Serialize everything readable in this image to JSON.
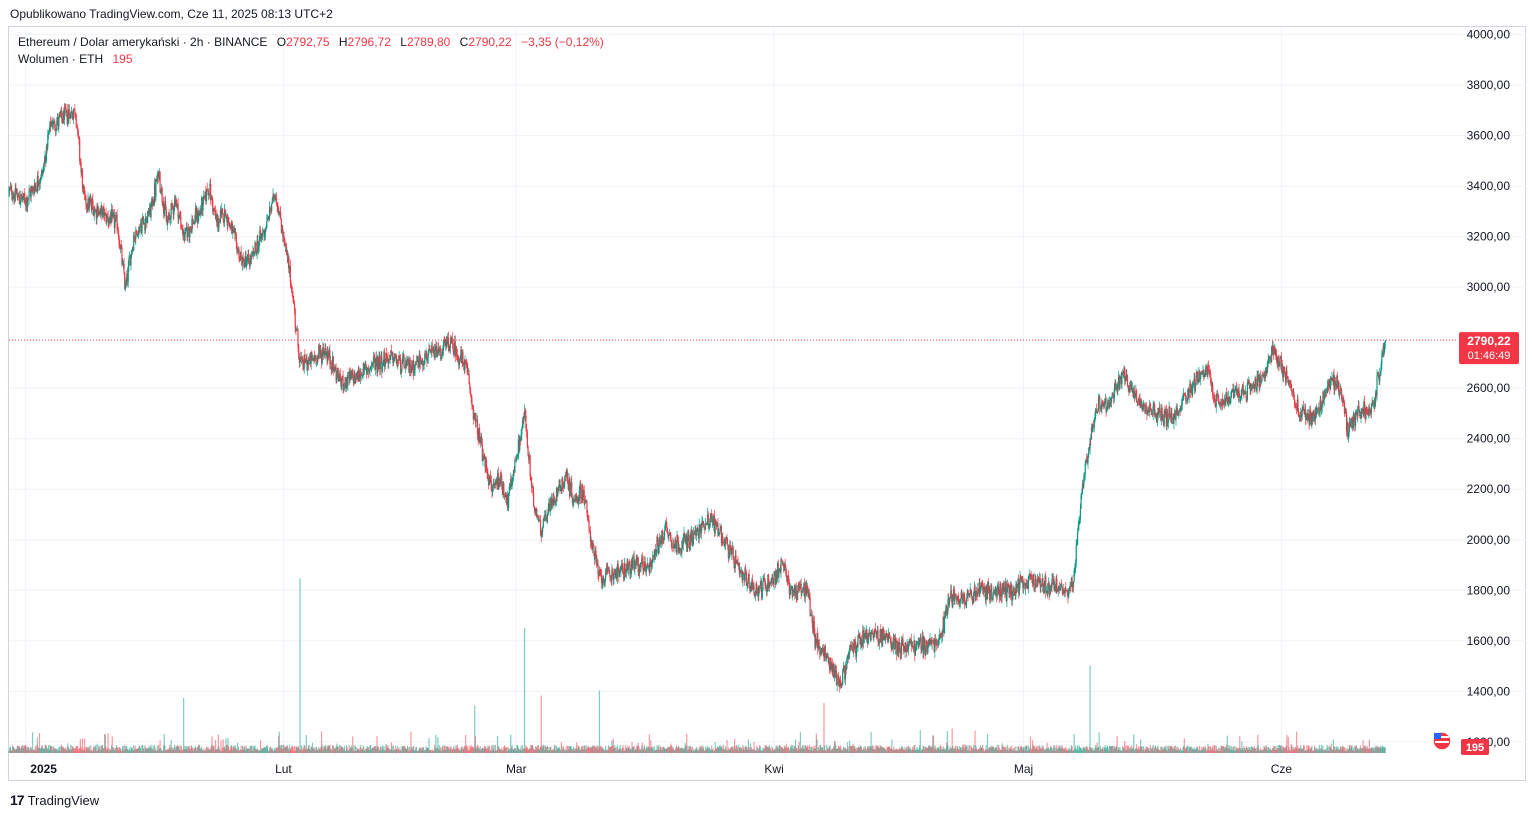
{
  "header": {
    "published": "Opublikowano TradingView.com, Cze 11, 2025 08:13 UTC+2"
  },
  "legend": {
    "symbol": "Ethereum / Dolar amerykański · 2h · BINANCE",
    "o_label": "O",
    "o_value": "2792,75",
    "h_label": "H",
    "h_value": "2796,72",
    "l_label": "L",
    "l_value": "2789,80",
    "c_label": "C",
    "c_value": "2790,22",
    "change": "−3,35 (−0,12%)",
    "volume_label": "Wolumen · ETH",
    "volume_value": "195"
  },
  "price_tag": {
    "price": "2790,22",
    "countdown": "01:46:49"
  },
  "volume_tag": {
    "value": "195"
  },
  "footer": {
    "brand": "TradingView",
    "logo": "17"
  },
  "colors": {
    "up": "#089981",
    "down": "#f23645",
    "grid": "#f0f3fa",
    "axis_text": "#131722"
  },
  "chart_data": {
    "type": "candlestick",
    "title": "Ethereum / Dolar amerykański · 2h · BINANCE",
    "y_ticks": [
      "4000,00",
      "3800,00",
      "3600,00",
      "3400,00",
      "3200,00",
      "3000,00",
      "2600,00",
      "2400,00",
      "2200,00",
      "2000,00",
      "1800,00",
      "1600,00",
      "1400,00",
      "1200,00"
    ],
    "y_tick_values": [
      4000,
      3800,
      3600,
      3400,
      3200,
      3000,
      2600,
      2400,
      2200,
      2000,
      1800,
      1600,
      1400,
      1200
    ],
    "ylim": [
      1140,
      4030
    ],
    "x_ticks": [
      {
        "label": "2025",
        "date": "2025-01-01"
      },
      {
        "label": "Lut",
        "date": "2025-02-01"
      },
      {
        "label": "Mar",
        "date": "2025-03-01"
      },
      {
        "label": "Kwi",
        "date": "2025-04-01"
      },
      {
        "label": "Maj",
        "date": "2025-05-01"
      },
      {
        "label": "Cze",
        "date": "2025-06-01"
      }
    ],
    "xlim": [
      "2024-12-30",
      "2025-06-22"
    ],
    "last_price": 2790.22,
    "grid": true,
    "price_anchors": [
      {
        "date": "2024-12-30",
        "price": 3380
      },
      {
        "date": "2025-01-01",
        "price": 3340
      },
      {
        "date": "2025-01-03",
        "price": 3450
      },
      {
        "date": "2025-01-04",
        "price": 3640
      },
      {
        "date": "2025-01-07",
        "price": 3700
      },
      {
        "date": "2025-01-08",
        "price": 3350
      },
      {
        "date": "2025-01-09",
        "price": 3320
      },
      {
        "date": "2025-01-12",
        "price": 3250
      },
      {
        "date": "2025-01-13",
        "price": 3000
      },
      {
        "date": "2025-01-14",
        "price": 3200
      },
      {
        "date": "2025-01-16",
        "price": 3300
      },
      {
        "date": "2025-01-17",
        "price": 3450
      },
      {
        "date": "2025-01-18",
        "price": 3250
      },
      {
        "date": "2025-01-19",
        "price": 3350
      },
      {
        "date": "2025-01-20",
        "price": 3200
      },
      {
        "date": "2025-01-22",
        "price": 3300
      },
      {
        "date": "2025-01-23",
        "price": 3400
      },
      {
        "date": "2025-01-24",
        "price": 3250
      },
      {
        "date": "2025-01-25",
        "price": 3300
      },
      {
        "date": "2025-01-27",
        "price": 3100
      },
      {
        "date": "2025-01-28",
        "price": 3100
      },
      {
        "date": "2025-01-30",
        "price": 3250
      },
      {
        "date": "2025-01-31",
        "price": 3380
      },
      {
        "date": "2025-02-01",
        "price": 3200
      },
      {
        "date": "2025-02-02",
        "price": 3000
      },
      {
        "date": "2025-02-03",
        "price": 2700
      },
      {
        "date": "2025-02-04",
        "price": 2700
      },
      {
        "date": "2025-02-06",
        "price": 2750
      },
      {
        "date": "2025-02-08",
        "price": 2620
      },
      {
        "date": "2025-02-10",
        "price": 2650
      },
      {
        "date": "2025-02-12",
        "price": 2700
      },
      {
        "date": "2025-02-14",
        "price": 2720
      },
      {
        "date": "2025-02-16",
        "price": 2680
      },
      {
        "date": "2025-02-18",
        "price": 2720
      },
      {
        "date": "2025-02-20",
        "price": 2750
      },
      {
        "date": "2025-02-21",
        "price": 2780
      },
      {
        "date": "2025-02-23",
        "price": 2680
      },
      {
        "date": "2025-02-24",
        "price": 2480
      },
      {
        "date": "2025-02-25",
        "price": 2330
      },
      {
        "date": "2025-02-26",
        "price": 2200
      },
      {
        "date": "2025-02-27",
        "price": 2250
      },
      {
        "date": "2025-02-28",
        "price": 2150
      },
      {
        "date": "2025-03-02",
        "price": 2500
      },
      {
        "date": "2025-03-03",
        "price": 2150
      },
      {
        "date": "2025-03-04",
        "price": 2050
      },
      {
        "date": "2025-03-06",
        "price": 2200
      },
      {
        "date": "2025-03-07",
        "price": 2250
      },
      {
        "date": "2025-03-08",
        "price": 2150
      },
      {
        "date": "2025-03-09",
        "price": 2200
      },
      {
        "date": "2025-03-10",
        "price": 2000
      },
      {
        "date": "2025-03-11",
        "price": 1850
      },
      {
        "date": "2025-03-13",
        "price": 1870
      },
      {
        "date": "2025-03-15",
        "price": 1900
      },
      {
        "date": "2025-03-17",
        "price": 1900
      },
      {
        "date": "2025-03-19",
        "price": 2050
      },
      {
        "date": "2025-03-20",
        "price": 1980
      },
      {
        "date": "2025-03-22",
        "price": 2000
      },
      {
        "date": "2025-03-24",
        "price": 2080
      },
      {
        "date": "2025-03-25",
        "price": 2060
      },
      {
        "date": "2025-03-26",
        "price": 2000
      },
      {
        "date": "2025-03-28",
        "price": 1860
      },
      {
        "date": "2025-03-30",
        "price": 1800
      },
      {
        "date": "2025-04-01",
        "price": 1850
      },
      {
        "date": "2025-04-02",
        "price": 1900
      },
      {
        "date": "2025-04-03",
        "price": 1800
      },
      {
        "date": "2025-04-05",
        "price": 1800
      },
      {
        "date": "2025-04-06",
        "price": 1600
      },
      {
        "date": "2025-04-07",
        "price": 1550
      },
      {
        "date": "2025-04-09",
        "price": 1430
      },
      {
        "date": "2025-04-10",
        "price": 1550
      },
      {
        "date": "2025-04-12",
        "price": 1620
      },
      {
        "date": "2025-04-14",
        "price": 1620
      },
      {
        "date": "2025-04-16",
        "price": 1580
      },
      {
        "date": "2025-04-18",
        "price": 1580
      },
      {
        "date": "2025-04-20",
        "price": 1590
      },
      {
        "date": "2025-04-21",
        "price": 1600
      },
      {
        "date": "2025-04-22",
        "price": 1770
      },
      {
        "date": "2025-04-24",
        "price": 1780
      },
      {
        "date": "2025-04-26",
        "price": 1800
      },
      {
        "date": "2025-04-28",
        "price": 1790
      },
      {
        "date": "2025-04-30",
        "price": 1800
      },
      {
        "date": "2025-05-02",
        "price": 1840
      },
      {
        "date": "2025-05-04",
        "price": 1820
      },
      {
        "date": "2025-05-06",
        "price": 1800
      },
      {
        "date": "2025-05-07",
        "price": 1820
      },
      {
        "date": "2025-05-08",
        "price": 2200
      },
      {
        "date": "2025-05-09",
        "price": 2400
      },
      {
        "date": "2025-05-10",
        "price": 2550
      },
      {
        "date": "2025-05-11",
        "price": 2520
      },
      {
        "date": "2025-05-13",
        "price": 2650
      },
      {
        "date": "2025-05-14",
        "price": 2600
      },
      {
        "date": "2025-05-15",
        "price": 2550
      },
      {
        "date": "2025-05-17",
        "price": 2500
      },
      {
        "date": "2025-05-19",
        "price": 2480
      },
      {
        "date": "2025-05-20",
        "price": 2550
      },
      {
        "date": "2025-05-21",
        "price": 2600
      },
      {
        "date": "2025-05-23",
        "price": 2680
      },
      {
        "date": "2025-05-24",
        "price": 2550
      },
      {
        "date": "2025-05-26",
        "price": 2560
      },
      {
        "date": "2025-05-28",
        "price": 2600
      },
      {
        "date": "2025-05-30",
        "price": 2650
      },
      {
        "date": "2025-05-31",
        "price": 2750
      },
      {
        "date": "2025-06-02",
        "price": 2620
      },
      {
        "date": "2025-06-03",
        "price": 2500
      },
      {
        "date": "2025-06-05",
        "price": 2480
      },
      {
        "date": "2025-06-06",
        "price": 2550
      },
      {
        "date": "2025-06-07",
        "price": 2640
      },
      {
        "date": "2025-06-08",
        "price": 2600
      },
      {
        "date": "2025-06-09",
        "price": 2420
      },
      {
        "date": "2025-06-10",
        "price": 2500
      },
      {
        "date": "2025-06-11",
        "price": 2520
      },
      {
        "date": "2025-06-12",
        "price": 2530
      },
      {
        "date": "2025-06-13",
        "price": 2700
      },
      {
        "date": "2025-06-13T12:00",
        "price": 2790
      }
    ],
    "volume_ylim": [
      0,
      800
    ],
    "volume_spikes": [
      {
        "date": "2025-02-03",
        "value": 700
      },
      {
        "date": "2025-03-02",
        "value": 500
      },
      {
        "date": "2025-05-09",
        "value": 350
      },
      {
        "date": "2025-01-20",
        "value": 220
      },
      {
        "date": "2025-03-04",
        "value": 230
      },
      {
        "date": "2025-03-11",
        "value": 250
      },
      {
        "date": "2025-04-07",
        "value": 200
      },
      {
        "date": "2025-02-24",
        "value": 190
      }
    ]
  }
}
